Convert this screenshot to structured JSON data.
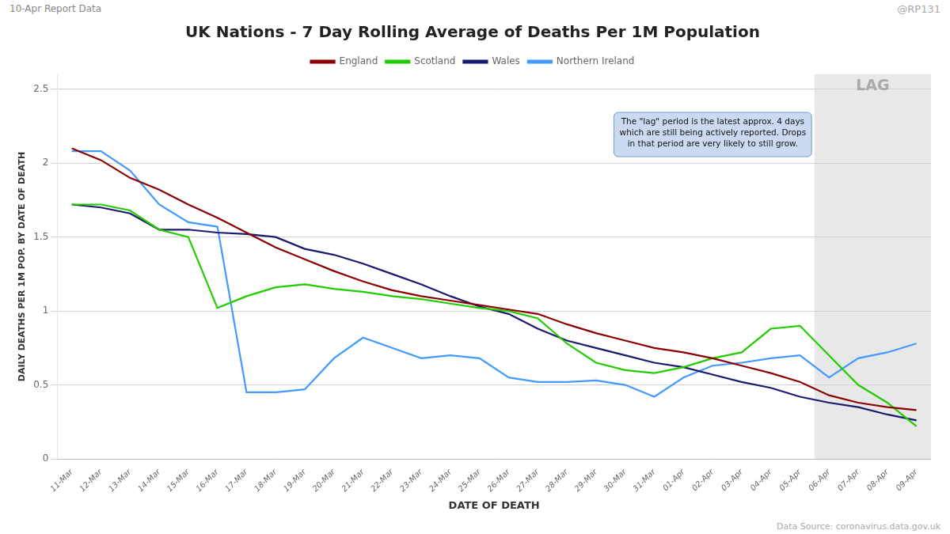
{
  "chart_data": {
    "type": "line",
    "title": "UK Nations - 7 Day Rolling Average of Deaths Per 1M Population",
    "subtitle": "10-Apr Report Data",
    "watermark": "@RP131",
    "source": "Data Source: coronavirus.data.gov.uk",
    "xlabel": "DATE OF DEATH",
    "ylabel": "DAILY DEATHS PER 1M POP. BY DATE OF DEATH",
    "categories": [
      "11-Mar",
      "12-Mar",
      "13-Mar",
      "14-Mar",
      "15-Mar",
      "16-Mar",
      "17-Mar",
      "18-Mar",
      "19-Mar",
      "20-Mar",
      "21-Mar",
      "22-Mar",
      "23-Mar",
      "24-Mar",
      "25-Mar",
      "26-Mar",
      "27-Mar",
      "28-Mar",
      "29-Mar",
      "30-Mar",
      "31-Mar",
      "01-Apr",
      "02-Apr",
      "03-Apr",
      "04-Apr",
      "05-Apr",
      "06-Apr",
      "07-Apr",
      "08-Apr",
      "09-Apr"
    ],
    "series": [
      {
        "name": "England",
        "color": "#8B0000",
        "values": [
          2.1,
          2.02,
          1.9,
          1.82,
          1.72,
          1.63,
          1.53,
          1.43,
          1.35,
          1.27,
          1.2,
          1.14,
          1.1,
          1.07,
          1.04,
          1.01,
          0.98,
          0.91,
          0.85,
          0.8,
          0.75,
          0.72,
          0.68,
          0.63,
          0.58,
          0.52,
          0.43,
          0.38,
          0.35,
          0.33
        ]
      },
      {
        "name": "Scotland",
        "color": "#22CC00",
        "values": [
          1.72,
          1.72,
          1.68,
          1.55,
          1.5,
          1.02,
          1.1,
          1.16,
          1.18,
          1.15,
          1.13,
          1.1,
          1.08,
          1.05,
          1.02,
          1.0,
          0.95,
          0.78,
          0.65,
          0.6,
          0.58,
          0.62,
          0.68,
          0.72,
          0.88,
          0.9,
          0.7,
          0.5,
          0.38,
          0.22
        ]
      },
      {
        "name": "Wales",
        "color": "#191970",
        "values": [
          1.72,
          1.7,
          1.66,
          1.55,
          1.55,
          1.53,
          1.52,
          1.5,
          1.42,
          1.38,
          1.32,
          1.25,
          1.18,
          1.1,
          1.03,
          0.98,
          0.88,
          0.8,
          0.75,
          0.7,
          0.65,
          0.62,
          0.57,
          0.52,
          0.48,
          0.42,
          0.38,
          0.35,
          0.3,
          0.26
        ]
      },
      {
        "name": "Northern Ireland",
        "color": "#4499FF",
        "values": [
          2.08,
          2.08,
          1.95,
          1.72,
          1.6,
          1.57,
          0.45,
          0.45,
          0.47,
          0.68,
          0.82,
          0.75,
          0.68,
          0.7,
          0.68,
          0.55,
          0.52,
          0.52,
          0.53,
          0.5,
          0.42,
          0.55,
          0.63,
          0.65,
          0.68,
          0.7,
          0.55,
          0.68,
          0.72,
          0.78
        ]
      }
    ],
    "ylim": [
      0,
      2.6
    ],
    "yticks": [
      0,
      0.5,
      1,
      1.5,
      2,
      2.5
    ],
    "grid": true,
    "legend": "top",
    "shaded_region": {
      "from": "06-Apr",
      "to": "09-Apr",
      "label": "LAG",
      "color": "#e8e8e8"
    },
    "annotations": [
      "The \"lag\" period is the latest approx. 4 days\nwhich are still being actively reported. Drops\nin that period are very likely to still grow."
    ]
  }
}
